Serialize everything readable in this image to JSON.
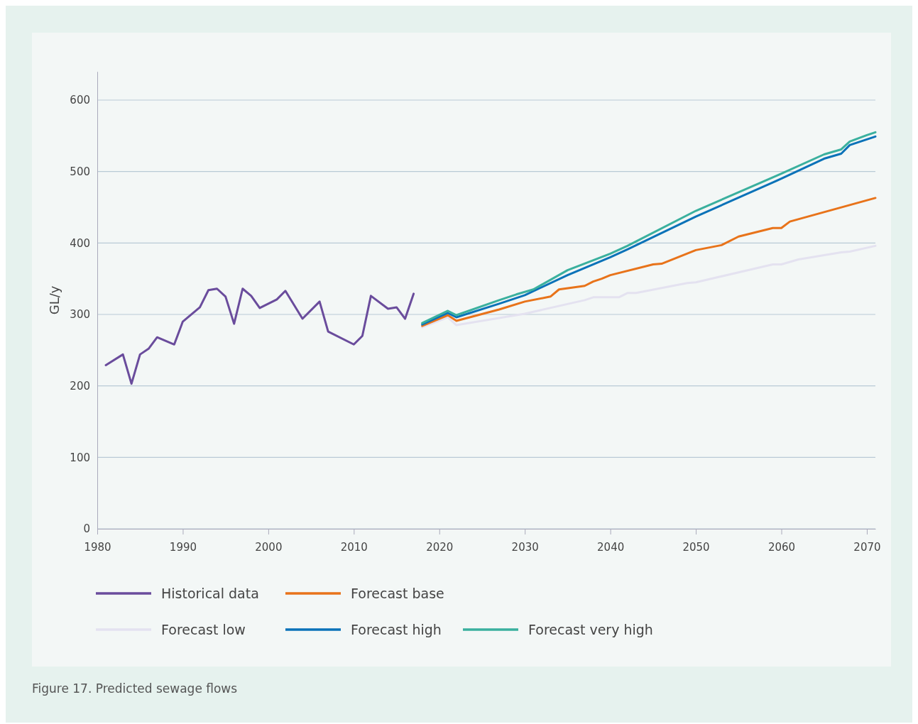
{
  "chart_data": {
    "type": "line",
    "ylabel": "GL/y",
    "xlim": [
      1980,
      2071
    ],
    "xticks": [
      1980,
      1990,
      2000,
      2010,
      2020,
      2030,
      2040,
      2050,
      2060,
      2070
    ],
    "ylim": [
      0,
      640
    ],
    "yticks": [
      0,
      100,
      200,
      300,
      400,
      500,
      600
    ],
    "grid": "y",
    "legend": "bottom",
    "line_style": "solid",
    "marker": "none",
    "annotations": [
      "Figure 17. Predicted sewage flows"
    ],
    "series": [
      {
        "name": "Historical data",
        "color": "#6a4c9c",
        "x": [
          1981,
          1983,
          1984,
          1985,
          1986,
          1987,
          1989,
          1990,
          1992,
          1993,
          1994,
          1995,
          1996,
          1997,
          1998,
          1999,
          2001,
          2002,
          2004,
          2006,
          2007,
          2010,
          2011,
          2012,
          2014,
          2015,
          2016,
          2017
        ],
        "values": [
          229,
          244,
          203,
          244,
          252,
          268,
          258,
          290,
          310,
          334,
          336,
          325,
          287,
          336,
          326,
          309,
          321,
          333,
          294,
          318,
          276,
          258,
          270,
          326,
          308,
          310,
          294,
          329
        ]
      },
      {
        "name": "Forecast base",
        "color": "#e8731a",
        "x": [
          2018,
          2021,
          2022,
          2027,
          2030,
          2033,
          2034,
          2037,
          2038,
          2039,
          2040,
          2045,
          2046,
          2050,
          2053,
          2055,
          2059,
          2060,
          2061,
          2071
        ],
        "values": [
          284,
          299,
          291,
          307,
          318,
          325,
          335,
          340,
          346,
          350,
          355,
          370,
          371,
          390,
          397,
          409,
          421,
          421,
          430,
          463
        ]
      },
      {
        "name": "Forecast low",
        "color": "#e4e2f0",
        "x": [
          2018,
          2021,
          2022,
          2030,
          2037,
          2038,
          2041,
          2042,
          2043,
          2049,
          2050,
          2059,
          2060,
          2062,
          2067,
          2068,
          2071
        ],
        "values": [
          282,
          296,
          285,
          301,
          320,
          324,
          324,
          330,
          330,
          344,
          345,
          370,
          370,
          377,
          387,
          388,
          396
        ]
      },
      {
        "name": "Forecast high",
        "color": "#0a72b8",
        "x": [
          2018,
          2021,
          2022,
          2027,
          2030,
          2035,
          2040,
          2042,
          2050,
          2060,
          2065,
          2067,
          2068,
          2070,
          2071
        ],
        "values": [
          286,
          302,
          296,
          315,
          327,
          355,
          380,
          391,
          437,
          490,
          518,
          525,
          537,
          545,
          549
        ]
      },
      {
        "name": "Forecast very high",
        "color": "#3ab09e",
        "x": [
          2018,
          2021,
          2022,
          2027,
          2029,
          2031,
          2035,
          2040,
          2042,
          2050,
          2060,
          2065,
          2067,
          2068,
          2070,
          2071
        ],
        "values": [
          288,
          305,
          299,
          320,
          328,
          335,
          362,
          385,
          396,
          445,
          497,
          524,
          531,
          542,
          551,
          555
        ]
      }
    ]
  }
}
